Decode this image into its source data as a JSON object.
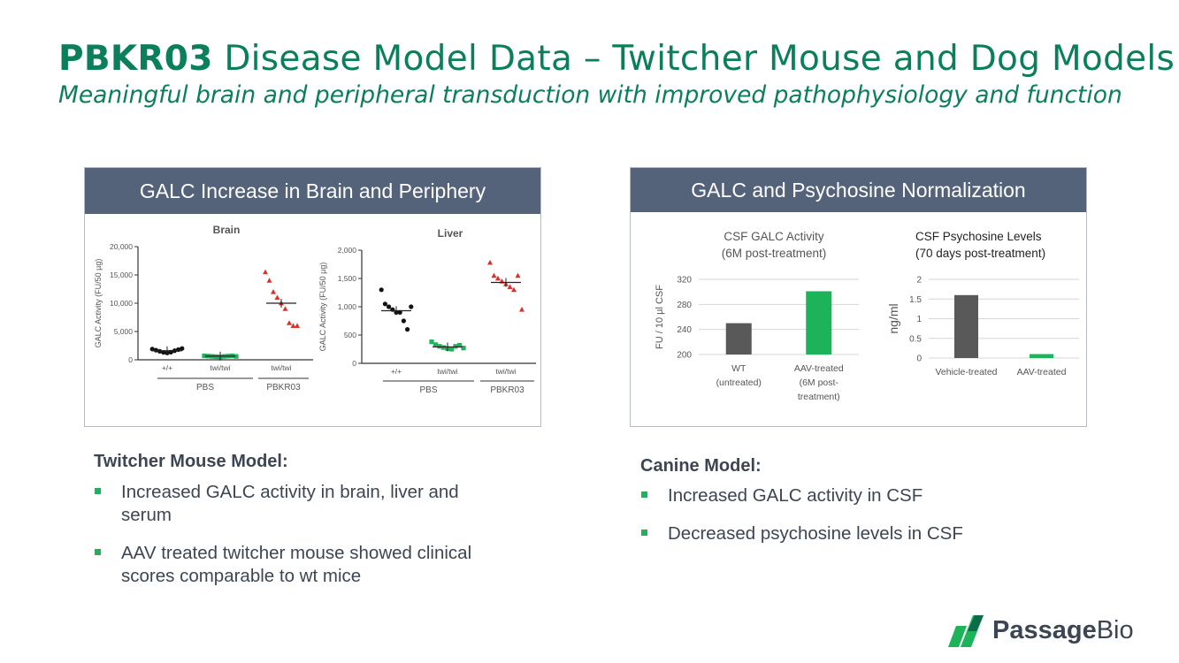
{
  "header": {
    "title_bold": "PBKR03",
    "title_rest": "Disease Model Data – Twitcher Mouse and Dog Models",
    "subtitle": "Meaningful brain and peripheral transduction with improved pathophysiology and function"
  },
  "left_panel": {
    "title": "GALC Increase in Brain and Periphery"
  },
  "right_panel": {
    "title": "GALC and Psychosine Normalization"
  },
  "colors": {
    "header_bar": "#55637a",
    "green": "#1db35b",
    "dark_bar": "#595959",
    "red": "#d9312b",
    "title_green": "#0a7f5a"
  },
  "chart_data": [
    {
      "type": "scatter",
      "title": "Brain",
      "ylabel": "GALC Activity (FU/50 µg)",
      "ylim": [
        0,
        20000
      ],
      "yticks": [
        "0",
        "5,000",
        "10,000",
        "15,000",
        "20,000"
      ],
      "categories": [
        "+/+",
        "twi/twi",
        "twi/twi"
      ],
      "groups": [
        "PBS",
        "PBKR03"
      ],
      "series": [
        {
          "category": "+/+",
          "color": "black",
          "marker": "circle",
          "mean": 1600,
          "values": [
            1900,
            1700,
            1500,
            1300,
            1200,
            1350,
            1600,
            1800,
            2000
          ]
        },
        {
          "category": "twi/twi",
          "color": "green",
          "marker": "square",
          "mean": 650,
          "values": [
            700,
            650,
            600,
            550,
            500,
            600,
            650,
            700,
            600
          ]
        },
        {
          "category": "twi/twi",
          "color": "red",
          "marker": "triangle",
          "mean": 10000,
          "values": [
            15500,
            14000,
            12000,
            11000,
            10000,
            9000,
            6500,
            6000,
            6000
          ]
        }
      ]
    },
    {
      "type": "scatter",
      "title": "Liver",
      "ylabel": "GALC Activity (FU/50 µg)",
      "ylim": [
        0,
        2000
      ],
      "yticks": [
        "0",
        "500",
        "1,000",
        "1,500",
        "2,000"
      ],
      "categories": [
        "+/+",
        "twi/twi",
        "twi/twi"
      ],
      "groups": [
        "PBS",
        "PBKR03"
      ],
      "series": [
        {
          "category": "+/+",
          "color": "black",
          "marker": "circle",
          "mean": 930,
          "values": [
            1300,
            1050,
            1000,
            950,
            900,
            900,
            750,
            600,
            1000
          ]
        },
        {
          "category": "twi/twi",
          "color": "green",
          "marker": "square",
          "mean": 290,
          "values": [
            380,
            330,
            300,
            280,
            260,
            250,
            300,
            320,
            270
          ]
        },
        {
          "category": "twi/twi",
          "color": "red",
          "marker": "triangle",
          "mean": 1430,
          "values": [
            1780,
            1550,
            1500,
            1450,
            1400,
            1350,
            1300,
            1550,
            950
          ]
        }
      ]
    },
    {
      "type": "bar",
      "title": "CSF GALC Activity",
      "subtitle": "(6M post-treatment)",
      "ylabel": "FU / 10 µl CSF",
      "ylim": [
        200,
        320
      ],
      "yticks": [
        "200",
        "240",
        "280",
        "320"
      ],
      "categories": [
        "WT\n(untreated)",
        "AAV-treated\n(6M post-\ntreatment)"
      ],
      "values": [
        250,
        301
      ],
      "colors": [
        "#595959",
        "#1db35b"
      ],
      "grid": true
    },
    {
      "type": "bar",
      "title": "CSF Psychosine Levels",
      "subtitle": "(70 days post-treatment)",
      "ylabel": "ng/ml",
      "ylim": [
        0,
        2
      ],
      "yticks": [
        "0",
        "0.5",
        "1",
        "1.5",
        "2"
      ],
      "categories": [
        "Vehicle-treated",
        "AAV-treated"
      ],
      "values": [
        1.6,
        0.1
      ],
      "colors": [
        "#595959",
        "#1db35b"
      ],
      "grid": true
    }
  ],
  "mouse": {
    "heading": "Twitcher Mouse Model:",
    "bullets": [
      "Increased GALC activity in brain, liver and serum",
      "AAV treated twitcher mouse showed clinical scores comparable to wt mice"
    ]
  },
  "canine": {
    "heading": "Canine Model:",
    "bullets": [
      "Increased GALC activity in CSF",
      "Decreased psychosine levels in CSF"
    ]
  },
  "logo": {
    "word_bold": "Passage",
    "word_light": "Bio"
  }
}
